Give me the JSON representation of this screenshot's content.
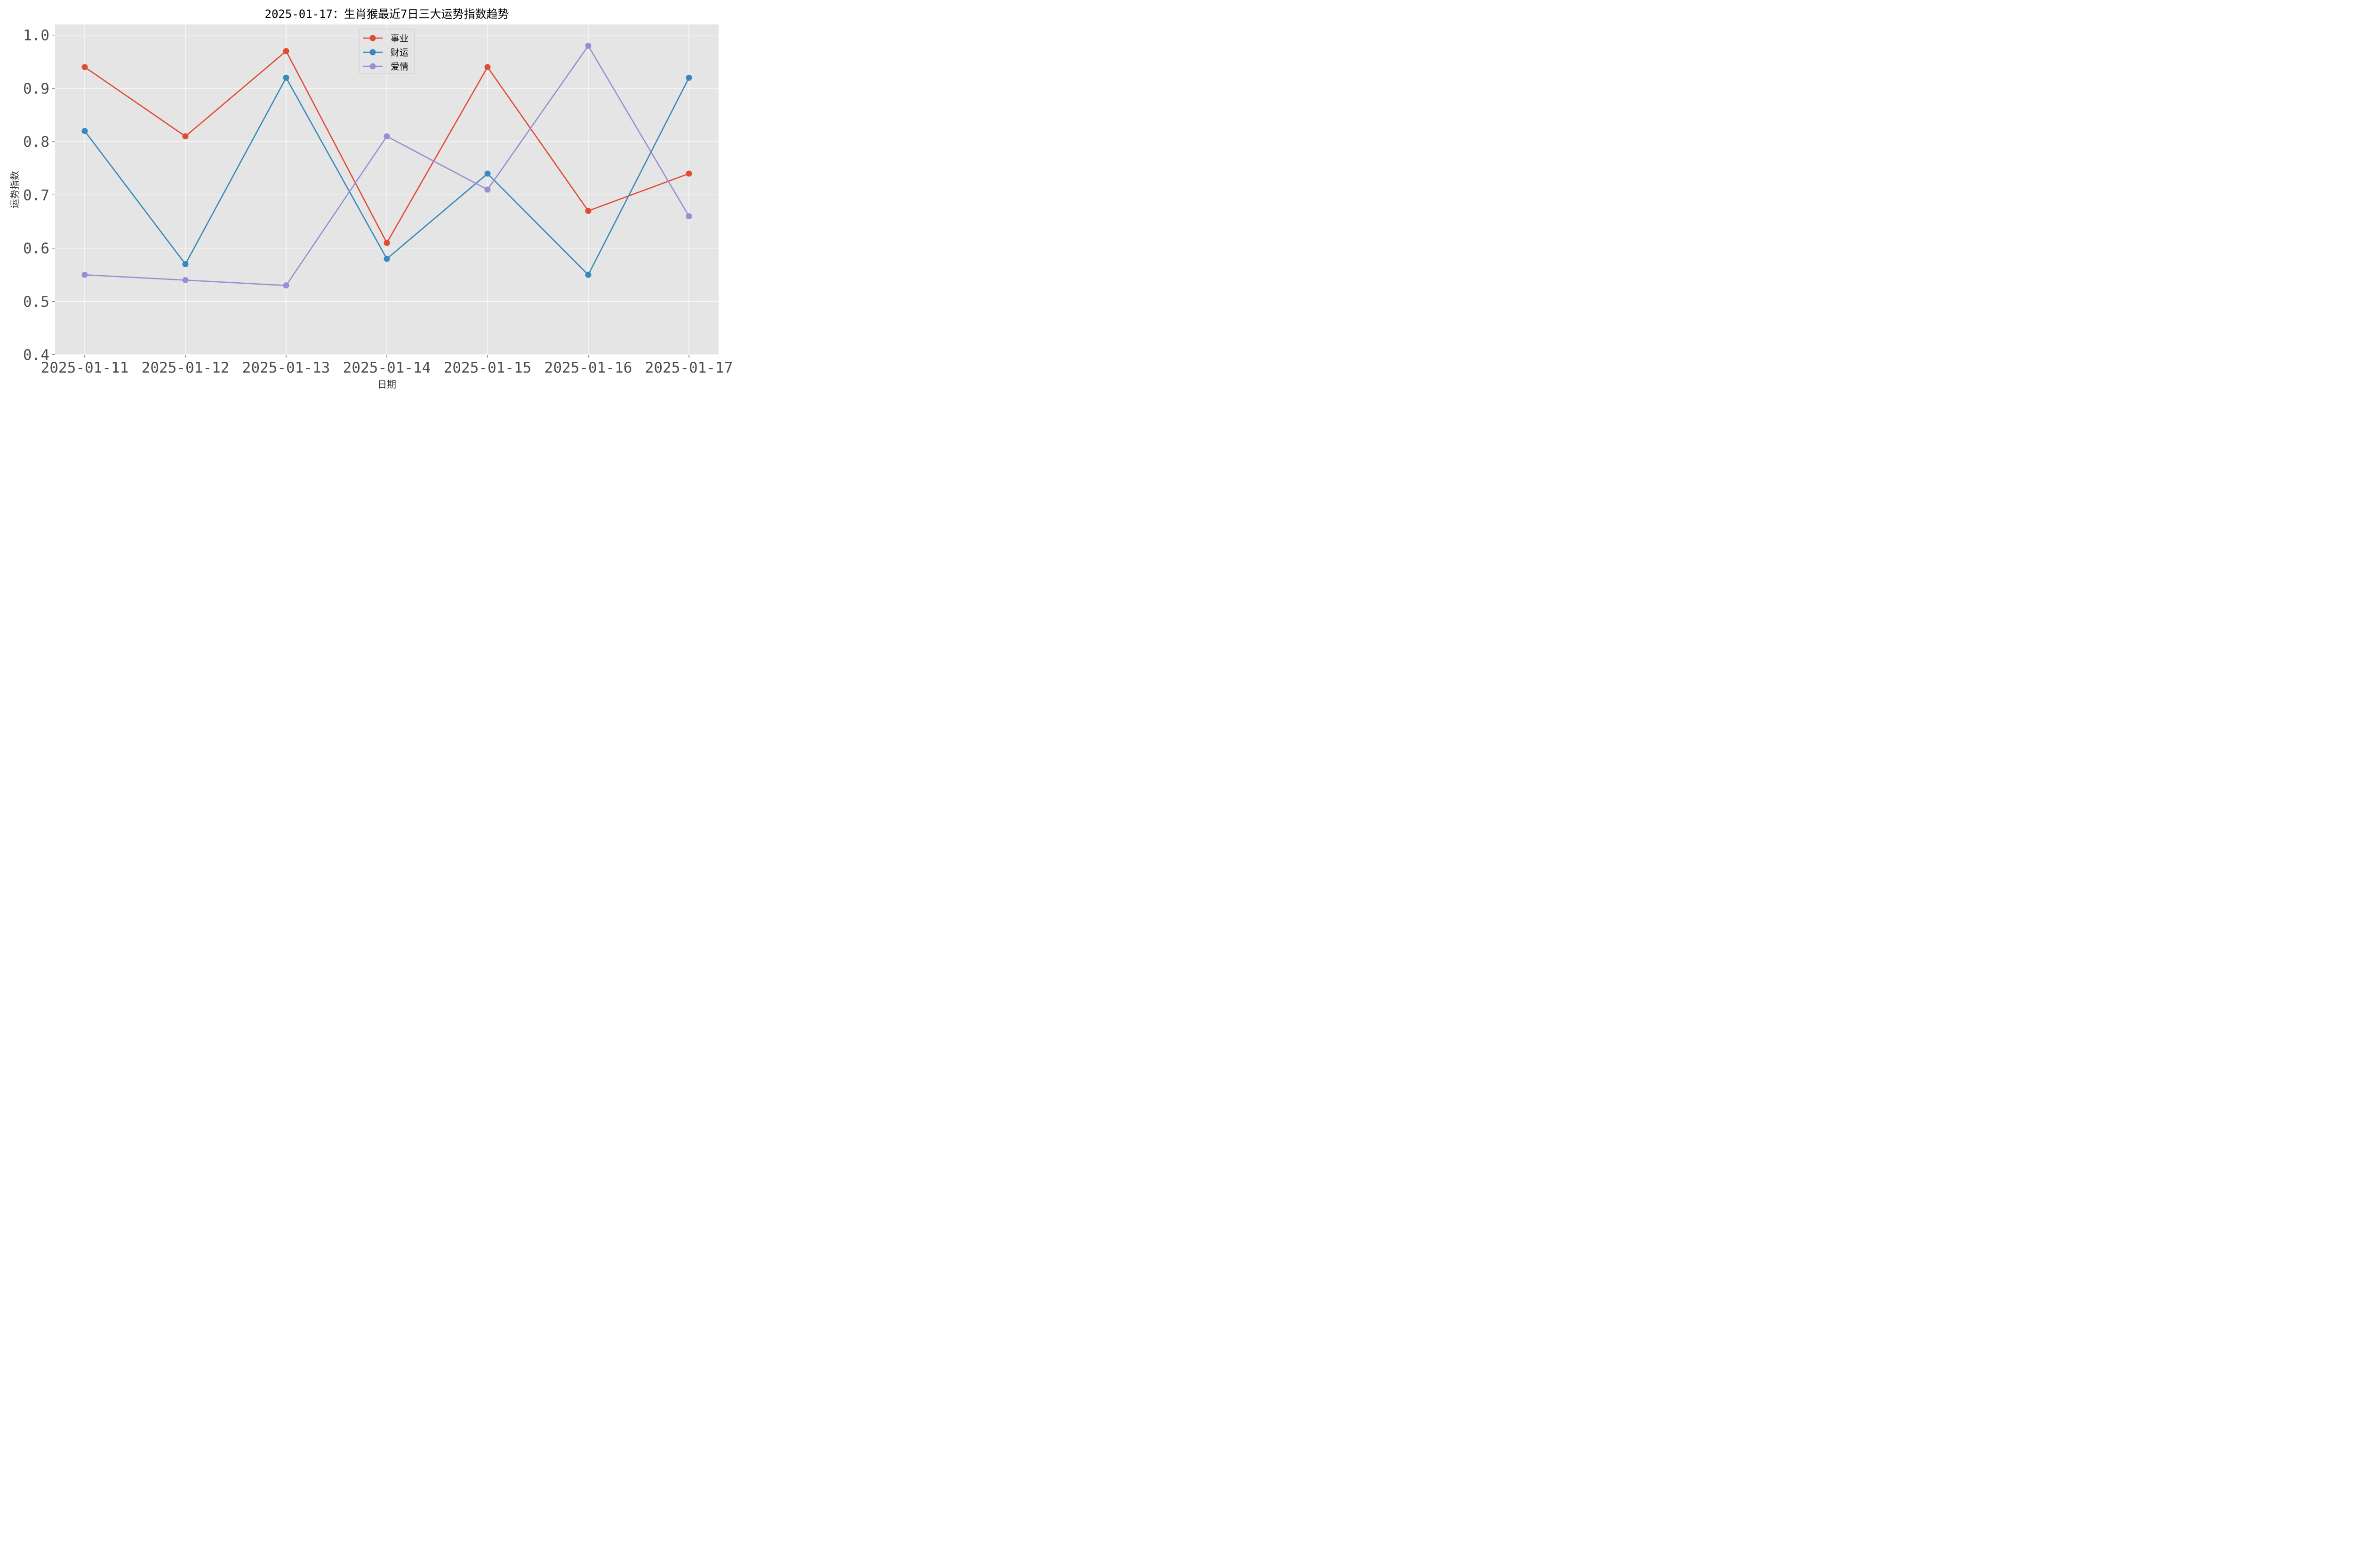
{
  "chart_data": {
    "type": "line",
    "title": "2025-01-17：生肖猴最近7日三大运势指数趋势",
    "xlabel": "日期",
    "ylabel": "运势指数",
    "categories": [
      "2025-01-11",
      "2025-01-12",
      "2025-01-13",
      "2025-01-14",
      "2025-01-15",
      "2025-01-16",
      "2025-01-17"
    ],
    "ylim": [
      0.4,
      1.02
    ],
    "yticks": [
      0.4,
      0.5,
      0.6,
      0.7,
      0.8,
      0.9,
      1.0
    ],
    "ytick_labels": [
      "0.4",
      "0.5",
      "0.6",
      "0.7",
      "0.8",
      "0.9",
      "1.0"
    ],
    "grid": true,
    "legend_position": "top-center",
    "series": [
      {
        "name": "事业",
        "color": "#E24A33",
        "values": [
          0.94,
          0.81,
          0.97,
          0.61,
          0.94,
          0.67,
          0.74
        ]
      },
      {
        "name": "财运",
        "color": "#348ABD",
        "values": [
          0.82,
          0.57,
          0.92,
          0.58,
          0.74,
          0.55,
          0.92
        ]
      },
      {
        "name": "爱情",
        "color": "#988ED5",
        "values": [
          0.55,
          0.54,
          0.53,
          0.81,
          0.71,
          0.98,
          0.66
        ]
      }
    ]
  }
}
